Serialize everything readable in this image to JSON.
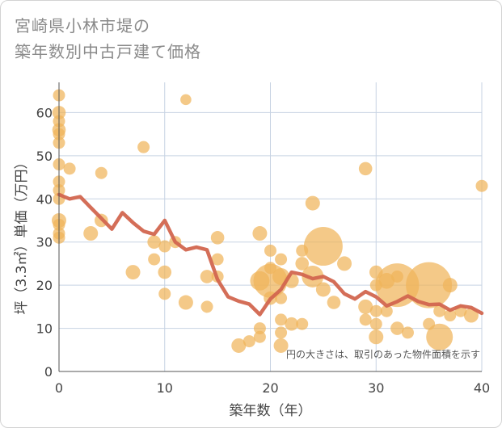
{
  "chart_data": {
    "type": "scatter",
    "title_lines": [
      "宮崎県小林市堤の",
      "築年数別中古戸建て価格"
    ],
    "xlabel": "築年数（年）",
    "ylabel": "坪（3.3㎡）単価（万円）",
    "note": "円の大きさは、取引のあった物件面積を示す",
    "xlim": [
      0,
      40
    ],
    "ylim": [
      0,
      67
    ],
    "xticks": [
      0,
      10,
      20,
      30,
      40
    ],
    "yticks": [
      0,
      10,
      20,
      30,
      40,
      50,
      60
    ],
    "grid": true,
    "colors": {
      "points": "#f0b45a",
      "line": "#d2664f",
      "grid": "#c7d3e3"
    },
    "points": [
      {
        "x": 0,
        "y": 64,
        "s": 1
      },
      {
        "x": 0,
        "y": 60,
        "s": 1.1
      },
      {
        "x": 0,
        "y": 58,
        "s": 1
      },
      {
        "x": 0,
        "y": 56,
        "s": 1.1
      },
      {
        "x": 0,
        "y": 55,
        "s": 1
      },
      {
        "x": 0,
        "y": 53,
        "s": 1
      },
      {
        "x": 0,
        "y": 48,
        "s": 1
      },
      {
        "x": 0,
        "y": 44,
        "s": 1
      },
      {
        "x": 0,
        "y": 42,
        "s": 1
      },
      {
        "x": 0,
        "y": 40,
        "s": 1
      },
      {
        "x": 0,
        "y": 35,
        "s": 1.2
      },
      {
        "x": 0,
        "y": 34,
        "s": 1
      },
      {
        "x": 0,
        "y": 32,
        "s": 1
      },
      {
        "x": 0,
        "y": 31,
        "s": 1
      },
      {
        "x": 1,
        "y": 47,
        "s": 1
      },
      {
        "x": 3,
        "y": 32,
        "s": 1.2
      },
      {
        "x": 4,
        "y": 46,
        "s": 1
      },
      {
        "x": 4,
        "y": 35,
        "s": 1.1
      },
      {
        "x": 7,
        "y": 23,
        "s": 1.2
      },
      {
        "x": 8,
        "y": 52,
        "s": 1
      },
      {
        "x": 9,
        "y": 30,
        "s": 1.1
      },
      {
        "x": 9,
        "y": 26,
        "s": 1
      },
      {
        "x": 10,
        "y": 29,
        "s": 1
      },
      {
        "x": 10,
        "y": 23,
        "s": 1.1
      },
      {
        "x": 10,
        "y": 18,
        "s": 1
      },
      {
        "x": 11,
        "y": 30,
        "s": 1
      },
      {
        "x": 12,
        "y": 63,
        "s": 0.9
      },
      {
        "x": 12,
        "y": 16,
        "s": 1.2
      },
      {
        "x": 14,
        "y": 22,
        "s": 1.1
      },
      {
        "x": 14,
        "y": 15,
        "s": 1
      },
      {
        "x": 15,
        "y": 31,
        "s": 1.1
      },
      {
        "x": 15,
        "y": 26,
        "s": 1
      },
      {
        "x": 15,
        "y": 22,
        "s": 1
      },
      {
        "x": 17,
        "y": 6,
        "s": 1.2
      },
      {
        "x": 18,
        "y": 7,
        "s": 1
      },
      {
        "x": 19,
        "y": 32,
        "s": 1.2
      },
      {
        "x": 19,
        "y": 21,
        "s": 1.6
      },
      {
        "x": 19,
        "y": 10,
        "s": 1
      },
      {
        "x": 19,
        "y": 8,
        "s": 1
      },
      {
        "x": 20,
        "y": 28,
        "s": 1
      },
      {
        "x": 20,
        "y": 24,
        "s": 1
      },
      {
        "x": 20,
        "y": 21,
        "s": 2.8
      },
      {
        "x": 20,
        "y": 17,
        "s": 1.1
      },
      {
        "x": 21,
        "y": 26,
        "s": 1
      },
      {
        "x": 21,
        "y": 22,
        "s": 1.4
      },
      {
        "x": 21,
        "y": 17,
        "s": 1
      },
      {
        "x": 21,
        "y": 12,
        "s": 1
      },
      {
        "x": 21,
        "y": 9,
        "s": 1
      },
      {
        "x": 21,
        "y": 6,
        "s": 1.2
      },
      {
        "x": 22,
        "y": 21,
        "s": 1.2
      },
      {
        "x": 22,
        "y": 11,
        "s": 1.1
      },
      {
        "x": 23,
        "y": 25,
        "s": 1.1
      },
      {
        "x": 23,
        "y": 28,
        "s": 1
      },
      {
        "x": 23,
        "y": 11,
        "s": 1
      },
      {
        "x": 24,
        "y": 39,
        "s": 1.2
      },
      {
        "x": 24,
        "y": 22,
        "s": 1.8
      },
      {
        "x": 25,
        "y": 29,
        "s": 3.2
      },
      {
        "x": 25,
        "y": 19,
        "s": 1.2
      },
      {
        "x": 26,
        "y": 16,
        "s": 1.1
      },
      {
        "x": 27,
        "y": 25,
        "s": 1.2
      },
      {
        "x": 29,
        "y": 47,
        "s": 1.1
      },
      {
        "x": 29,
        "y": 15,
        "s": 1.2
      },
      {
        "x": 29,
        "y": 12,
        "s": 1
      },
      {
        "x": 30,
        "y": 23,
        "s": 1.1
      },
      {
        "x": 30,
        "y": 20,
        "s": 1
      },
      {
        "x": 30,
        "y": 14,
        "s": 1
      },
      {
        "x": 30,
        "y": 11,
        "s": 1
      },
      {
        "x": 30,
        "y": 8,
        "s": 1.2
      },
      {
        "x": 31,
        "y": 21,
        "s": 1.3
      },
      {
        "x": 31,
        "y": 14,
        "s": 1
      },
      {
        "x": 32,
        "y": 20,
        "s": 3.6
      },
      {
        "x": 32,
        "y": 22,
        "s": 1
      },
      {
        "x": 32,
        "y": 10,
        "s": 1.1
      },
      {
        "x": 33,
        "y": 9,
        "s": 1
      },
      {
        "x": 35,
        "y": 20,
        "s": 3.8
      },
      {
        "x": 35,
        "y": 11,
        "s": 1
      },
      {
        "x": 36,
        "y": 14,
        "s": 1
      },
      {
        "x": 36,
        "y": 8,
        "s": 2.2
      },
      {
        "x": 37,
        "y": 20,
        "s": 1.2
      },
      {
        "x": 37,
        "y": 13,
        "s": 1
      },
      {
        "x": 38,
        "y": 14,
        "s": 1
      },
      {
        "x": 39,
        "y": 13,
        "s": 1.2
      },
      {
        "x": 40,
        "y": 43,
        "s": 1
      }
    ],
    "trend": {
      "x": [
        0,
        1,
        2,
        3,
        4,
        5,
        6,
        7,
        8,
        9,
        10,
        11,
        12,
        13,
        14,
        15,
        16,
        17,
        18,
        19,
        20,
        21,
        22,
        23,
        24,
        25,
        26,
        27,
        28,
        29,
        30,
        31,
        32,
        33,
        34,
        35,
        36,
        37,
        38,
        39,
        40
      ],
      "y": [
        41,
        40,
        40.5,
        38,
        35.5,
        33,
        36.8,
        34.5,
        32.5,
        31.8,
        35,
        30,
        28.2,
        28.8,
        28.2,
        21.3,
        17.3,
        16.3,
        15.6,
        13.2,
        16.8,
        19,
        23,
        22.5,
        21.5,
        22,
        20.8,
        18,
        16.8,
        18.5,
        17.3,
        15.2,
        16.2,
        17.5,
        16.2,
        15.5,
        15.6,
        14.2,
        15.2,
        14.8,
        13.5
      ]
    }
  }
}
